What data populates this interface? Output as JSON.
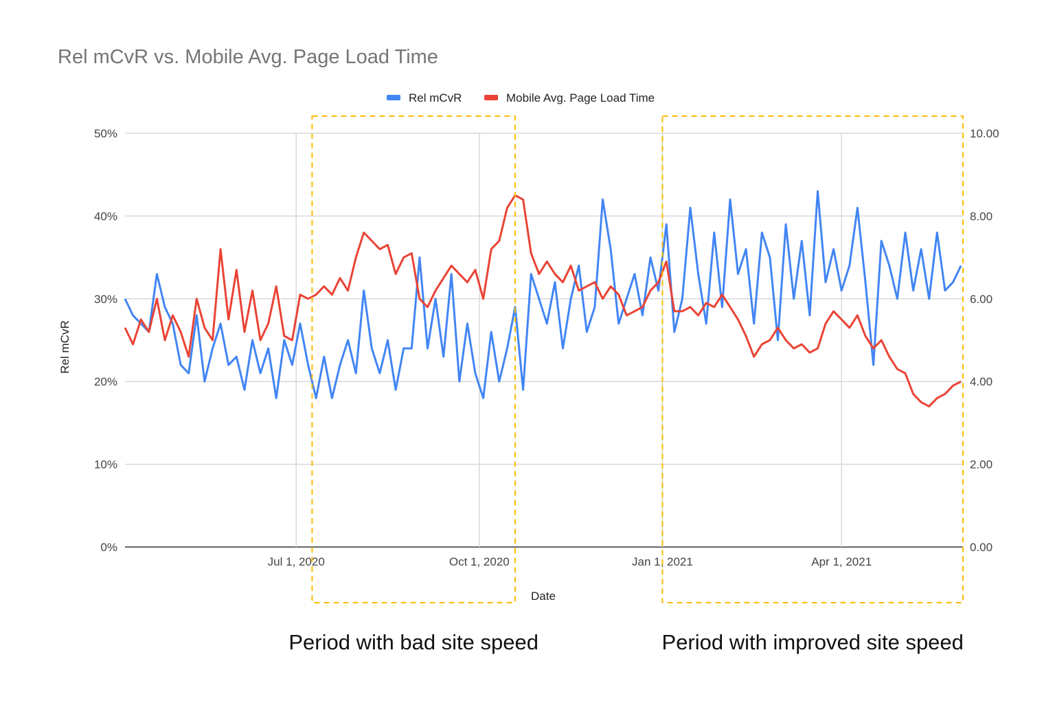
{
  "chart_data": {
    "type": "line",
    "title": "Rel mCvR vs. Mobile Avg. Page Load Time",
    "xlabel": "Date",
    "ylabel": "Rel mCvR",
    "y2label": "",
    "xlim": [
      "2020-04-06",
      "2021-06-01"
    ],
    "ylim": [
      0,
      50
    ],
    "y2lim": [
      0,
      10
    ],
    "x_ticks": [
      {
        "date": "2020-07-01",
        "label": "Jul 1, 2020"
      },
      {
        "date": "2020-10-01",
        "label": "Oct 1, 2020"
      },
      {
        "date": "2021-01-01",
        "label": "Jan 1, 2021"
      },
      {
        "date": "2021-04-01",
        "label": "Apr 1, 2021"
      }
    ],
    "y_ticks": [
      {
        "value": 0,
        "label": "0%"
      },
      {
        "value": 10,
        "label": "10%"
      },
      {
        "value": 20,
        "label": "20%"
      },
      {
        "value": 30,
        "label": "30%"
      },
      {
        "value": 40,
        "label": "40%"
      },
      {
        "value": 50,
        "label": "50%"
      }
    ],
    "y2_ticks": [
      {
        "value": 0,
        "label": "0.00"
      },
      {
        "value": 2,
        "label": "2.00"
      },
      {
        "value": 4,
        "label": "4.00"
      },
      {
        "value": 6,
        "label": "6.00"
      },
      {
        "value": 8,
        "label": "8.00"
      },
      {
        "value": 10,
        "label": "10.00"
      }
    ],
    "grid": true,
    "legend_position": "top",
    "x": [
      "2020-04-06",
      "2020-04-10",
      "2020-04-14",
      "2020-04-18",
      "2020-04-22",
      "2020-04-26",
      "2020-04-30",
      "2020-05-04",
      "2020-05-08",
      "2020-05-12",
      "2020-05-16",
      "2020-05-20",
      "2020-05-24",
      "2020-05-28",
      "2020-06-01",
      "2020-06-05",
      "2020-06-09",
      "2020-06-13",
      "2020-06-17",
      "2020-06-21",
      "2020-06-25",
      "2020-06-29",
      "2020-07-03",
      "2020-07-07",
      "2020-07-11",
      "2020-07-15",
      "2020-07-19",
      "2020-07-23",
      "2020-07-27",
      "2020-07-31",
      "2020-08-04",
      "2020-08-08",
      "2020-08-12",
      "2020-08-16",
      "2020-08-20",
      "2020-08-24",
      "2020-08-28",
      "2020-09-01",
      "2020-09-05",
      "2020-09-09",
      "2020-09-13",
      "2020-09-17",
      "2020-09-21",
      "2020-09-25",
      "2020-09-29",
      "2020-10-03",
      "2020-10-07",
      "2020-10-11",
      "2020-10-15",
      "2020-10-19",
      "2020-10-23",
      "2020-10-27",
      "2020-10-31",
      "2020-11-04",
      "2020-11-08",
      "2020-11-12",
      "2020-11-16",
      "2020-11-20",
      "2020-11-24",
      "2020-11-28",
      "2020-12-02",
      "2020-12-06",
      "2020-12-10",
      "2020-12-14",
      "2020-12-18",
      "2020-12-22",
      "2020-12-26",
      "2020-12-30",
      "2021-01-03",
      "2021-01-07",
      "2021-01-11",
      "2021-01-15",
      "2021-01-19",
      "2021-01-23",
      "2021-01-27",
      "2021-01-31",
      "2021-02-04",
      "2021-02-08",
      "2021-02-12",
      "2021-02-16",
      "2021-02-20",
      "2021-02-24",
      "2021-02-28",
      "2021-03-04",
      "2021-03-08",
      "2021-03-12",
      "2021-03-16",
      "2021-03-20",
      "2021-03-24",
      "2021-03-28",
      "2021-04-01",
      "2021-04-05",
      "2021-04-09",
      "2021-04-13",
      "2021-04-17",
      "2021-04-21",
      "2021-04-25",
      "2021-04-29",
      "2021-05-03",
      "2021-05-07",
      "2021-05-11",
      "2021-05-15",
      "2021-05-19",
      "2021-05-23",
      "2021-05-27",
      "2021-05-31"
    ],
    "series": [
      {
        "name": "Rel mCvR",
        "axis": "left",
        "color": "#4285f4",
        "unit": "%",
        "values": [
          30,
          28,
          27,
          26,
          33,
          29,
          27,
          22,
          21,
          28,
          20,
          24,
          27,
          22,
          23,
          19,
          25,
          21,
          24,
          18,
          25,
          22,
          27,
          22,
          18,
          23,
          18,
          22,
          25,
          21,
          31,
          24,
          21,
          25,
          19,
          24,
          24,
          35,
          24,
          30,
          23,
          33,
          20,
          27,
          21,
          18,
          26,
          20,
          24,
          29,
          19,
          33,
          30,
          27,
          32,
          24,
          30,
          34,
          26,
          29,
          42,
          36,
          27,
          30,
          33,
          28,
          35,
          31,
          39,
          26,
          30,
          41,
          33,
          27,
          38,
          29,
          42,
          33,
          36,
          27,
          38,
          35,
          25,
          39,
          30,
          37,
          28,
          43,
          32,
          36,
          31,
          34,
          41,
          32,
          22,
          37,
          34,
          30,
          38,
          31,
          36,
          30,
          38,
          31,
          32,
          34
        ]
      },
      {
        "name": "Mobile Avg. Page Load Time",
        "axis": "right",
        "color": "#ea4335",
        "unit": "s",
        "values": [
          5.3,
          4.9,
          5.5,
          5.2,
          6.0,
          5.0,
          5.6,
          5.2,
          4.6,
          6.0,
          5.3,
          5.0,
          7.2,
          5.5,
          6.7,
          5.2,
          6.2,
          5.0,
          5.4,
          6.3,
          5.1,
          5.0,
          6.1,
          6.0,
          6.1,
          6.3,
          6.1,
          6.5,
          6.2,
          7.0,
          7.6,
          7.4,
          7.2,
          7.3,
          6.6,
          7.0,
          7.1,
          6.0,
          5.8,
          6.2,
          6.5,
          6.8,
          6.6,
          6.4,
          6.7,
          6.0,
          7.2,
          7.4,
          8.2,
          8.5,
          8.4,
          7.1,
          6.6,
          6.9,
          6.6,
          6.4,
          6.8,
          6.2,
          6.3,
          6.4,
          6.0,
          6.3,
          6.1,
          5.6,
          5.7,
          5.8,
          6.2,
          6.4,
          6.9,
          5.7,
          5.7,
          5.8,
          5.6,
          5.9,
          5.8,
          6.1,
          5.8,
          5.5,
          5.1,
          4.6,
          4.9,
          5.0,
          5.3,
          5.0,
          4.8,
          4.9,
          4.7,
          4.8,
          5.4,
          5.7,
          5.5,
          5.3,
          5.6,
          5.1,
          4.8,
          5.0,
          4.6,
          4.3,
          4.2,
          3.7,
          3.5,
          3.4,
          3.6,
          3.7,
          3.9,
          4.0
        ]
      }
    ],
    "annotations": [
      {
        "from": "2020-07-09",
        "to": "2020-10-19",
        "label": "Period with bad site speed",
        "color": "#fbbc04"
      },
      {
        "from": "2021-01-01",
        "to": "2021-06-01",
        "label": "Period with improved site speed",
        "color": "#fbbc04"
      }
    ]
  }
}
